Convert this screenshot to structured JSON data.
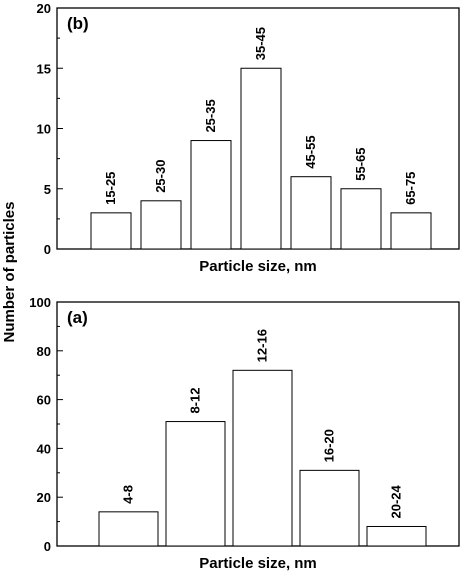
{
  "figure": {
    "shared_ylabel": "Number of particles"
  },
  "chart_data": [
    {
      "type": "bar",
      "panel_label": "(b)",
      "xlabel": "Particle size, nm",
      "ylabel": "Number of particles",
      "ylim": [
        0,
        20
      ],
      "yticks": [
        0,
        5,
        10,
        15,
        20
      ],
      "categories": [
        "15-25",
        "25-30",
        "25-35",
        "35-45",
        "45-55",
        "55-65",
        "65-75"
      ],
      "values": [
        3,
        4,
        9,
        15,
        6,
        5,
        3
      ],
      "grid": false
    },
    {
      "type": "bar",
      "panel_label": "(a)",
      "xlabel": "Particle size, nm",
      "ylabel": "Number of particles",
      "ylim": [
        0,
        100
      ],
      "yticks": [
        0,
        20,
        40,
        60,
        80,
        100
      ],
      "categories": [
        "4-8",
        "8-12",
        "12-16",
        "16-20",
        "20-24"
      ],
      "values": [
        14,
        51,
        72,
        31,
        8
      ],
      "grid": false
    }
  ]
}
